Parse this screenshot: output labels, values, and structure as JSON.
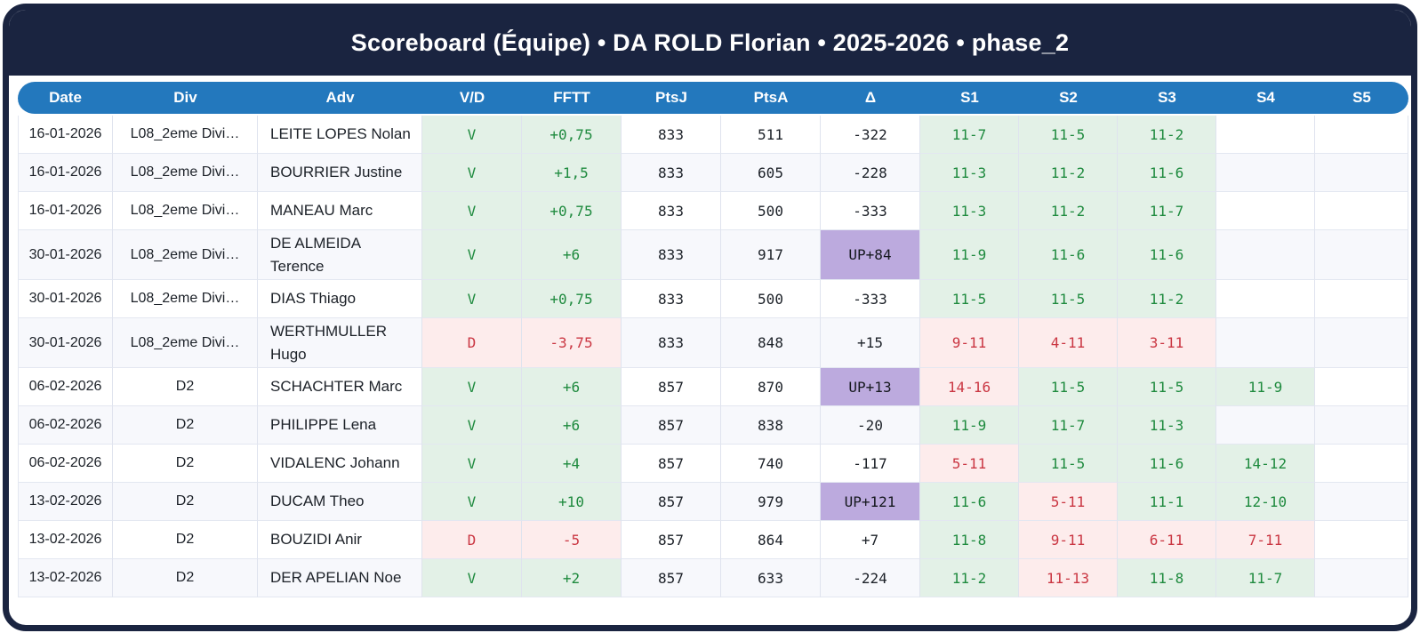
{
  "title": "Scoreboard (Équipe) • DA ROLD Florian • 2025-2026 • phase_2",
  "columns": [
    "Date",
    "Div",
    "Adv",
    "V/D",
    "FFTT",
    "PtsJ",
    "PtsA",
    "Δ",
    "S1",
    "S2",
    "S3",
    "S4",
    "S5"
  ],
  "colors": {
    "frame_navy": "#1a2440",
    "header_blue": "#2378bd",
    "win_bg": "#e3f1e7",
    "win_text": "#1e8a3e",
    "loss_bg": "#fdecec",
    "loss_text": "#ca3642",
    "promotion_bg": "#bcaade",
    "alt_row_bg": "#f7f8fc"
  },
  "rows": [
    {
      "date": "16-01-2026",
      "div": "L08_2eme Divi…",
      "adv": "LEITE LOPES Nolan",
      "vd": "V",
      "fftt": "+0,75",
      "ptsj": "833",
      "ptsa": "511",
      "delta": "-322",
      "sets": [
        "11-7",
        "11-5",
        "11-2",
        "",
        ""
      ]
    },
    {
      "date": "16-01-2026",
      "div": "L08_2eme Divi…",
      "adv": "BOURRIER Justine",
      "vd": "V",
      "fftt": "+1,5",
      "ptsj": "833",
      "ptsa": "605",
      "delta": "-228",
      "sets": [
        "11-3",
        "11-2",
        "11-6",
        "",
        ""
      ]
    },
    {
      "date": "16-01-2026",
      "div": "L08_2eme Divi…",
      "adv": "MANEAU Marc",
      "vd": "V",
      "fftt": "+0,75",
      "ptsj": "833",
      "ptsa": "500",
      "delta": "-333",
      "sets": [
        "11-3",
        "11-2",
        "11-7",
        "",
        ""
      ]
    },
    {
      "date": "30-01-2026",
      "div": "L08_2eme Divi…",
      "adv": "DE ALMEIDA Terence",
      "vd": "V",
      "fftt": "+6",
      "ptsj": "833",
      "ptsa": "917",
      "delta": "UP+84",
      "sets": [
        "11-9",
        "11-6",
        "11-6",
        "",
        ""
      ]
    },
    {
      "date": "30-01-2026",
      "div": "L08_2eme Divi…",
      "adv": "DIAS Thiago",
      "vd": "V",
      "fftt": "+0,75",
      "ptsj": "833",
      "ptsa": "500",
      "delta": "-333",
      "sets": [
        "11-5",
        "11-5",
        "11-2",
        "",
        ""
      ]
    },
    {
      "date": "30-01-2026",
      "div": "L08_2eme Divi…",
      "adv": "WERTHMULLER Hugo",
      "vd": "D",
      "fftt": "-3,75",
      "ptsj": "833",
      "ptsa": "848",
      "delta": "+15",
      "sets": [
        "9-11",
        "4-11",
        "3-11",
        "",
        ""
      ]
    },
    {
      "date": "06-02-2026",
      "div": "D2",
      "adv": "SCHACHTER Marc",
      "vd": "V",
      "fftt": "+6",
      "ptsj": "857",
      "ptsa": "870",
      "delta": "UP+13",
      "sets": [
        "14-16",
        "11-5",
        "11-5",
        "11-9",
        ""
      ]
    },
    {
      "date": "06-02-2026",
      "div": "D2",
      "adv": "PHILIPPE Lena",
      "vd": "V",
      "fftt": "+6",
      "ptsj": "857",
      "ptsa": "838",
      "delta": "-20",
      "sets": [
        "11-9",
        "11-7",
        "11-3",
        "",
        ""
      ]
    },
    {
      "date": "06-02-2026",
      "div": "D2",
      "adv": "VIDALENC Johann",
      "vd": "V",
      "fftt": "+4",
      "ptsj": "857",
      "ptsa": "740",
      "delta": "-117",
      "sets": [
        "5-11",
        "11-5",
        "11-6",
        "14-12",
        ""
      ]
    },
    {
      "date": "13-02-2026",
      "div": "D2",
      "adv": "DUCAM Theo",
      "vd": "V",
      "fftt": "+10",
      "ptsj": "857",
      "ptsa": "979",
      "delta": "UP+121",
      "sets": [
        "11-6",
        "5-11",
        "11-1",
        "12-10",
        ""
      ]
    },
    {
      "date": "13-02-2026",
      "div": "D2",
      "adv": "BOUZIDI Anir",
      "vd": "D",
      "fftt": "-5",
      "ptsj": "857",
      "ptsa": "864",
      "delta": "+7",
      "sets": [
        "11-8",
        "9-11",
        "6-11",
        "7-11",
        ""
      ]
    },
    {
      "date": "13-02-2026",
      "div": "D2",
      "adv": "DER APELIAN Noe",
      "vd": "V",
      "fftt": "+2",
      "ptsj": "857",
      "ptsa": "633",
      "delta": "-224",
      "sets": [
        "11-2",
        "11-13",
        "11-8",
        "11-7",
        ""
      ]
    }
  ]
}
